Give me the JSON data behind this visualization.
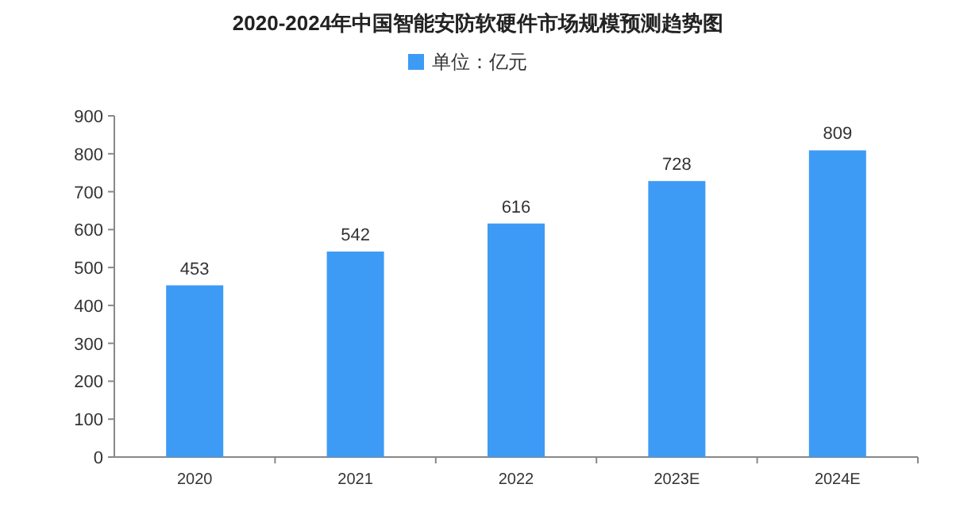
{
  "chart_data": {
    "type": "bar",
    "title": "2020-2024年中国智能安防软硬件市场规模预测趋势图",
    "categories": [
      "2020",
      "2021",
      "2022",
      "2023E",
      "2024E"
    ],
    "series": [
      {
        "name": "单位：亿元",
        "color": "#3d9bf5",
        "values": [
          453,
          542,
          616,
          728,
          809
        ]
      }
    ],
    "ylim": [
      0,
      900
    ],
    "yticks": [
      0,
      100,
      200,
      300,
      400,
      500,
      600,
      700,
      800,
      900
    ],
    "data_labels": true,
    "legend": "top",
    "grid": false
  }
}
